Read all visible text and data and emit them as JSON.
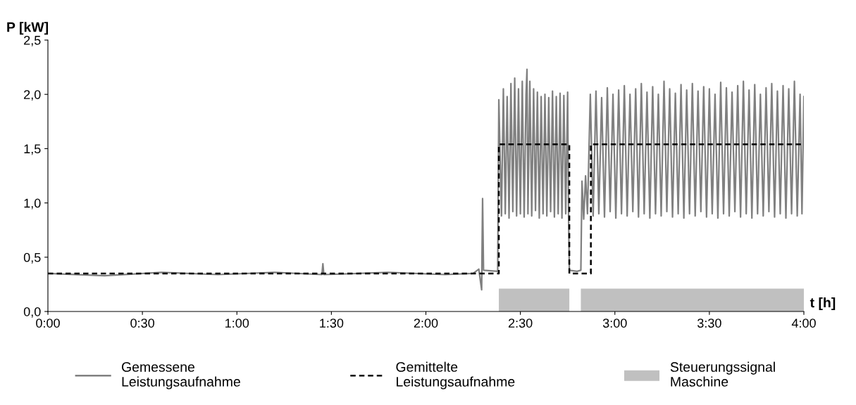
{
  "chart_data": {
    "type": "line",
    "xlabel": "t [h]",
    "ylabel": "P [kW]",
    "xlim": [
      0,
      4
    ],
    "ylim": [
      0,
      2.5
    ],
    "xticks": [
      {
        "value": 0,
        "label": "0:00"
      },
      {
        "value": 0.5,
        "label": "0:30"
      },
      {
        "value": 1,
        "label": "1:00"
      },
      {
        "value": 1.5,
        "label": "1:30"
      },
      {
        "value": 2,
        "label": "2:00"
      },
      {
        "value": 2.5,
        "label": "2:30"
      },
      {
        "value": 3,
        "label": "3:00"
      },
      {
        "value": 3.5,
        "label": "3:30"
      },
      {
        "value": 4,
        "label": "4:00"
      }
    ],
    "yticks": [
      {
        "value": 0,
        "label": "0,0"
      },
      {
        "value": 0.5,
        "label": "0,5"
      },
      {
        "value": 1,
        "label": "1,0"
      },
      {
        "value": 1.5,
        "label": "1,5"
      },
      {
        "value": 2,
        "label": "2,0"
      },
      {
        "value": 2.5,
        "label": "2,5"
      }
    ],
    "grid": false,
    "legend": "bottom",
    "series": [
      {
        "name": "Steuerungssignal\nMaschine",
        "type": "area",
        "color": "#c0c0c0",
        "x": [
          2.386,
          2.386,
          2.759,
          2.759,
          2.82,
          2.82,
          4.0,
          4.0
        ],
        "values": [
          0,
          0.21,
          0.21,
          0,
          0,
          0.21,
          0.21,
          0
        ]
      },
      {
        "name": "Gemessene\nLeistungsaufnahme",
        "color": "#808080",
        "line_style": "solid",
        "x": [
          0,
          0.3,
          0.6,
          0.9,
          1.2,
          1.45,
          1.455,
          1.46,
          1.8,
          2.1,
          2.25,
          2.28,
          2.295,
          2.3,
          2.305,
          2.38,
          2.386,
          2.4,
          2.41,
          2.42,
          2.43,
          2.44,
          2.45,
          2.46,
          2.47,
          2.48,
          2.49,
          2.5,
          2.51,
          2.52,
          2.53,
          2.535,
          2.54,
          2.55,
          2.56,
          2.57,
          2.58,
          2.59,
          2.6,
          2.61,
          2.62,
          2.63,
          2.64,
          2.65,
          2.66,
          2.67,
          2.68,
          2.69,
          2.7,
          2.71,
          2.72,
          2.73,
          2.74,
          2.75,
          2.755,
          2.759,
          2.8,
          2.82,
          2.826,
          2.835,
          2.845,
          2.855,
          2.87,
          2.885,
          2.9,
          2.915,
          2.93,
          2.945,
          2.96,
          2.975,
          2.99,
          3.005,
          3.02,
          3.035,
          3.05,
          3.065,
          3.08,
          3.095,
          3.11,
          3.125,
          3.14,
          3.155,
          3.17,
          3.185,
          3.2,
          3.215,
          3.23,
          3.245,
          3.26,
          3.275,
          3.29,
          3.305,
          3.32,
          3.335,
          3.35,
          3.365,
          3.38,
          3.395,
          3.41,
          3.425,
          3.44,
          3.455,
          3.47,
          3.485,
          3.5,
          3.515,
          3.53,
          3.545,
          3.56,
          3.575,
          3.59,
          3.605,
          3.62,
          3.635,
          3.65,
          3.665,
          3.68,
          3.695,
          3.71,
          3.725,
          3.74,
          3.755,
          3.77,
          3.785,
          3.8,
          3.815,
          3.83,
          3.845,
          3.86,
          3.875,
          3.89,
          3.905,
          3.92,
          3.935,
          3.95,
          3.965,
          3.98,
          3.99,
          4.0
        ],
        "values": [
          0.35,
          0.33,
          0.36,
          0.34,
          0.36,
          0.34,
          0.44,
          0.34,
          0.36,
          0.34,
          0.35,
          0.39,
          0.2,
          1.04,
          0.38,
          0.37,
          1.95,
          0.88,
          2.05,
          0.9,
          1.98,
          0.86,
          2.1,
          0.92,
          2.15,
          0.88,
          2.05,
          0.9,
          2.12,
          0.87,
          2.0,
          2.23,
          0.9,
          2.12,
          0.88,
          2.05,
          0.93,
          2.02,
          0.86,
          1.98,
          0.9,
          2.0,
          0.88,
          1.97,
          0.92,
          2.03,
          0.87,
          1.98,
          0.9,
          2.01,
          0.86,
          1.99,
          0.9,
          2.02,
          0.88,
          0.38,
          0.37,
          0.38,
          1.2,
          0.85,
          1.25,
          0.9,
          2.0,
          0.88,
          2.03,
          0.9,
          1.97,
          0.87,
          2.06,
          0.92,
          2.0,
          0.86,
          2.04,
          0.9,
          2.08,
          0.88,
          2.0,
          0.92,
          2.05,
          0.87,
          2.1,
          0.9,
          2.02,
          0.86,
          2.07,
          0.9,
          2.0,
          0.88,
          2.12,
          0.92,
          2.05,
          0.87,
          2.01,
          0.9,
          2.09,
          0.86,
          2.04,
          0.9,
          2.1,
          0.88,
          2.03,
          0.92,
          2.07,
          0.87,
          2.05,
          0.9,
          2.0,
          0.86,
          2.11,
          0.9,
          2.06,
          0.88,
          2.02,
          0.92,
          2.08,
          0.87,
          2.12,
          0.9,
          2.04,
          0.86,
          2.09,
          0.9,
          2.0,
          0.88,
          2.06,
          0.92,
          2.1,
          0.87,
          2.03,
          0.9,
          2.08,
          0.86,
          2.05,
          0.9,
          2.12,
          0.88,
          2.0,
          0.9,
          1.98
        ]
      },
      {
        "name": "Gemittelte\nLeistungsaufnahme",
        "color": "#000000",
        "line_style": "dashed",
        "x": [
          0,
          2.386,
          2.386,
          2.759,
          2.759,
          2.873,
          2.873,
          4.0
        ],
        "values": [
          0.35,
          0.35,
          1.54,
          1.54,
          0.35,
          0.35,
          1.54,
          1.54
        ]
      }
    ]
  }
}
